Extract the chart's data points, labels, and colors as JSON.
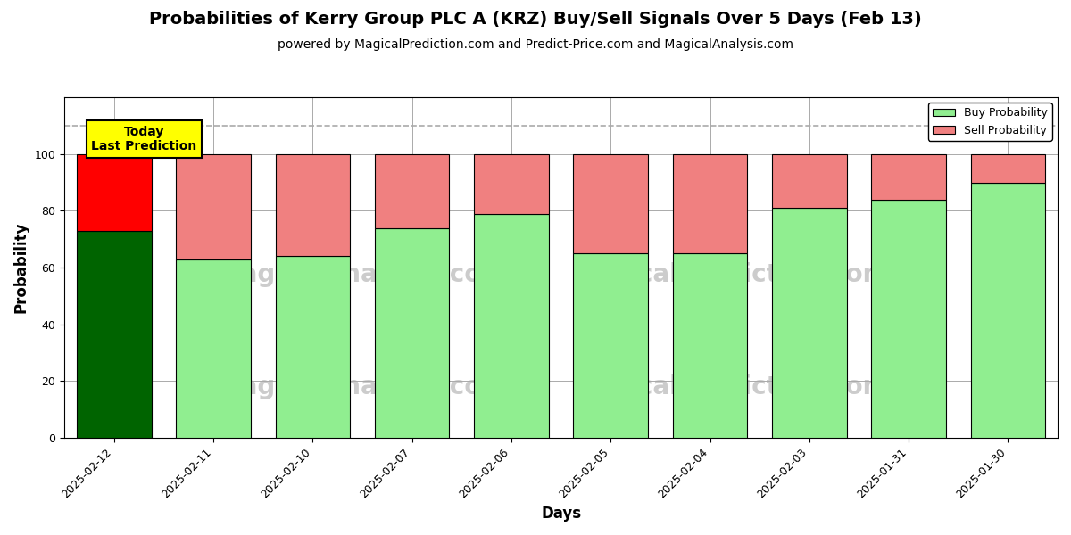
{
  "title": "Probabilities of Kerry Group PLC A (KRZ) Buy/Sell Signals Over 5 Days (Feb 13)",
  "subtitle": "powered by MagicalPrediction.com and Predict-Price.com and MagicalAnalysis.com",
  "xlabel": "Days",
  "ylabel": "Probability",
  "categories": [
    "2025-02-12",
    "2025-02-11",
    "2025-02-10",
    "2025-02-07",
    "2025-02-06",
    "2025-02-05",
    "2025-02-04",
    "2025-02-03",
    "2025-01-31",
    "2025-01-30"
  ],
  "buy_values": [
    73,
    63,
    64,
    74,
    79,
    65,
    65,
    81,
    84,
    90
  ],
  "sell_values": [
    27,
    37,
    36,
    26,
    21,
    35,
    35,
    19,
    16,
    10
  ],
  "today_buy_color": "#006400",
  "today_sell_color": "#FF0000",
  "buy_color": "#90EE90",
  "sell_color": "#F08080",
  "bar_edge_color": "#000000",
  "background_color": "#FFFFFF",
  "grid_color": "#AAAAAA",
  "dashed_line_y": 110,
  "ylim": [
    0,
    120
  ],
  "yticks": [
    0,
    20,
    40,
    60,
    80,
    100
  ],
  "watermark_color": "#CCCCCC",
  "today_label": "Today\nLast Prediction",
  "today_label_bg": "#FFFF00",
  "legend_buy_label": "Buy Probability",
  "legend_sell_label": "Sell Probability",
  "title_fontsize": 14,
  "subtitle_fontsize": 10,
  "axis_label_fontsize": 12,
  "tick_fontsize": 9
}
